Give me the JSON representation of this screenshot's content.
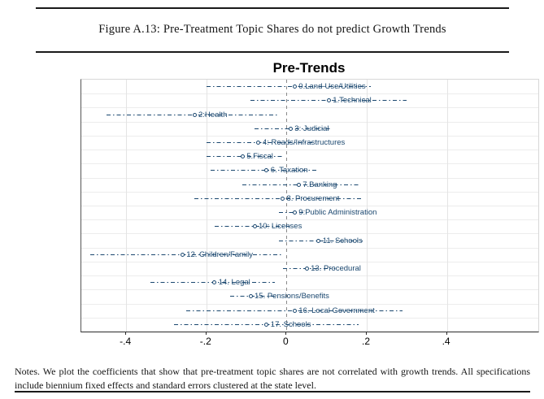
{
  "figure": {
    "caption": "Figure A.13: Pre-Treatment Topic Shares do not predict Growth Trends",
    "notes": "Notes. We plot the coefficients that show that pre-treatment topic shares are not correlated with growth trends. All specifications include biennium fixed effects and standard errors clustered at the state level."
  },
  "chart_data": {
    "type": "scatter",
    "subtype": "horizontal-coefficient-plot",
    "title": "Pre-Trends",
    "xlabel": "",
    "ylabel": "",
    "xlim": [
      -0.512,
      0.628
    ],
    "xticks": [
      {
        "v": -0.4,
        "label": "-.4"
      },
      {
        "v": -0.2,
        "label": "-.2"
      },
      {
        "v": 0,
        "label": "0"
      },
      {
        "v": 0.2,
        "label": ".2"
      },
      {
        "v": 0.4,
        "label": ".4"
      }
    ],
    "grid": true,
    "zero_line": true,
    "legend": "none",
    "accent_color": "#1a476f",
    "points": [
      {
        "label": "0.Land-Use/Utilities",
        "coef": 0.02,
        "ci_low": -0.2,
        "ci_high": 0.21
      },
      {
        "label": "1.Technical",
        "coef": 0.105,
        "ci_low": -0.09,
        "ci_high": 0.3
      },
      {
        "label": "2:Health",
        "coef": -0.23,
        "ci_low": -0.45,
        "ci_high": -0.02
      },
      {
        "label": "3: Judicial",
        "coef": 0.01,
        "ci_low": -0.08,
        "ci_high": 0.11
      },
      {
        "label": "4: Roads/Infrastructures",
        "coef": -0.07,
        "ci_low": -0.2,
        "ci_high": 0.07
      },
      {
        "label": "5.Fiscal",
        "coef": -0.11,
        "ci_low": -0.2,
        "ci_high": -0.01
      },
      {
        "label": "6. Taxation",
        "coef": -0.05,
        "ci_low": -0.19,
        "ci_high": 0.08
      },
      {
        "label": "7.Banking",
        "coef": 0.03,
        "ci_low": -0.11,
        "ci_high": 0.18
      },
      {
        "label": "8. Procurement",
        "coef": -0.01,
        "ci_low": -0.23,
        "ci_high": 0.19
      },
      {
        "label": "9:Public Administration",
        "coef": 0.02,
        "ci_low": -0.02,
        "ci_high": 0.05
      },
      {
        "label": "10: Licenses",
        "coef": -0.08,
        "ci_low": -0.18,
        "ci_high": 0.01
      },
      {
        "label": "11. Schools",
        "coef": 0.08,
        "ci_low": -0.02,
        "ci_high": 0.19
      },
      {
        "label": "12. Children/Family",
        "coef": -0.26,
        "ci_low": -0.49,
        "ci_high": -0.01
      },
      {
        "label": "13. Procedural",
        "coef": 0.05,
        "ci_low": -0.01,
        "ci_high": 0.12
      },
      {
        "label": "14. Legal",
        "coef": -0.18,
        "ci_low": -0.34,
        "ci_high": -0.03
      },
      {
        "label": "15. Pensions/Benefits",
        "coef": -0.09,
        "ci_low": -0.14,
        "ci_high": -0.03
      },
      {
        "label": "16. Local Government",
        "coef": 0.02,
        "ci_low": -0.25,
        "ci_high": 0.29
      },
      {
        "label": "17. Schools",
        "coef": -0.05,
        "ci_low": -0.28,
        "ci_high": 0.18
      }
    ]
  }
}
